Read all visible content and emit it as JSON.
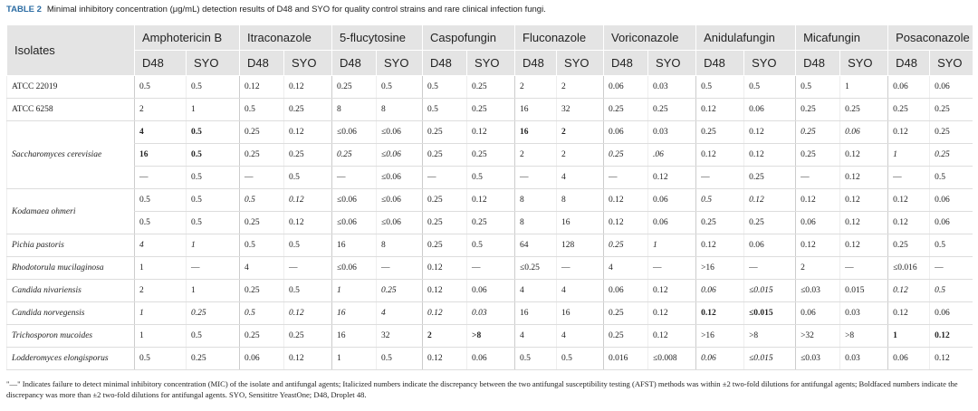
{
  "caption": {
    "label": "TABLE 2",
    "title": "Minimal inhibitory concentration (μg/mL) detection results of D48 and SYO for quality control strains and rare clinical infection fungi."
  },
  "table": {
    "corner": "Isolates",
    "columns": [
      "Amphotericin B",
      "Itraconazole",
      "5-flucytosine",
      "Caspofungin",
      "Fluconazole",
      "Voriconazole",
      "Anidulafungin",
      "Micafungin",
      "Posaconazole"
    ],
    "subcolumns": [
      "D48",
      "SYO"
    ],
    "rows": [
      {
        "isolate": "ATCC 22019",
        "subrows": [
          {
            "cells": [
              "0.5",
              "0.5",
              "0.12",
              "0.12",
              "0.25",
              "0.5",
              "0.5",
              "0.25",
              "2",
              "2",
              "0.06",
              "0.03",
              "0.5",
              "0.5",
              "0.5",
              "1",
              "0.06",
              "0.06"
            ]
          }
        ]
      },
      {
        "isolate": "ATCC 6258",
        "subrows": [
          {
            "cells": [
              "2",
              "1",
              "0.5",
              "0.25",
              "8",
              "8",
              "0.5",
              "0.25",
              "16",
              "32",
              "0.25",
              "0.25",
              "0.12",
              "0.06",
              "0.25",
              "0.25",
              "0.25",
              "0.25"
            ]
          }
        ]
      },
      {
        "isolate": "Saccharomyces cerevisiae",
        "isolate_italic": true,
        "subrows": [
          {
            "cells": [
              "4",
              "0.5",
              "0.25",
              "0.12",
              "≤0.06",
              "≤0.06",
              "0.25",
              "0.12",
              "16",
              "2",
              "0.06",
              "0.03",
              "0.25",
              "0.12",
              "0.25",
              "0.06",
              "0.12",
              "0.25"
            ],
            "bold": [
              0,
              1,
              8,
              9
            ],
            "italic": [
              14,
              15
            ]
          },
          {
            "cells": [
              "16",
              "0.5",
              "0.25",
              "0.25",
              "0.25",
              "≤0.06",
              "0.25",
              "0.25",
              "2",
              "2",
              "0.25",
              ".06",
              "0.12",
              "0.12",
              "0.25",
              "0.12",
              "1",
              "0.25"
            ],
            "bold": [
              0,
              1
            ],
            "italic": [
              4,
              5,
              10,
              11,
              16,
              17
            ]
          },
          {
            "cells": [
              "—",
              "0.5",
              "—",
              "0.5",
              "—",
              "≤0.06",
              "—",
              "0.5",
              "—",
              "4",
              "—",
              "0.12",
              "—",
              "0.25",
              "—",
              "0.12",
              "—",
              "0.5"
            ]
          }
        ]
      },
      {
        "isolate": "Kodamaea ohmeri",
        "isolate_italic": true,
        "subrows": [
          {
            "cells": [
              "0.5",
              "0.5",
              "0.5",
              "0.12",
              "≤0.06",
              "≤0.06",
              "0.25",
              "0.12",
              "8",
              "8",
              "0.12",
              "0.06",
              "0.5",
              "0.12",
              "0.12",
              "0.12",
              "0.12",
              "0.06"
            ],
            "italic": [
              2,
              3,
              12,
              13
            ]
          },
          {
            "cells": [
              "0.5",
              "0.5",
              "0.25",
              "0.12",
              "≤0.06",
              "≤0.06",
              "0.25",
              "0.25",
              "8",
              "16",
              "0.12",
              "0.06",
              "0.25",
              "0.25",
              "0.06",
              "0.12",
              "0.12",
              "0.06"
            ]
          }
        ]
      },
      {
        "isolate": "Pichia pastoris",
        "isolate_italic": true,
        "subrows": [
          {
            "cells": [
              "4",
              "1",
              "0.5",
              "0.5",
              "16",
              "8",
              "0.25",
              "0.5",
              "64",
              "128",
              "0.25",
              "1",
              "0.12",
              "0.06",
              "0.12",
              "0.12",
              "0.25",
              "0.5"
            ],
            "italic": [
              0,
              1,
              10,
              11
            ]
          }
        ]
      },
      {
        "isolate": "Rhodotorula mucilaginosa",
        "isolate_italic": true,
        "subrows": [
          {
            "cells": [
              "1",
              "—",
              "4",
              "—",
              "≤0.06",
              "—",
              "0.12",
              "—",
              "≤0.25",
              "—",
              "4",
              "—",
              ">16",
              "—",
              "2",
              "—",
              "≤0.016",
              "—"
            ]
          }
        ]
      },
      {
        "isolate": "Candida nivariensis",
        "isolate_italic": true,
        "subrows": [
          {
            "cells": [
              "2",
              "1",
              "0.25",
              "0.5",
              "1",
              "0.25",
              "0.12",
              "0.06",
              "4",
              "4",
              "0.06",
              "0.12",
              "0.06",
              "≤0.015",
              "≤0.03",
              "0.015",
              "0.12",
              "0.5"
            ],
            "italic": [
              4,
              5,
              12,
              13,
              16,
              17
            ]
          }
        ]
      },
      {
        "isolate": "Candida norvegensis",
        "isolate_italic": true,
        "subrows": [
          {
            "cells": [
              "1",
              "0.25",
              "0.5",
              "0.12",
              "16",
              "4",
              "0.12",
              "0.03",
              "16",
              "16",
              "0.25",
              "0.12",
              "0.12",
              "≤0.015",
              "0.06",
              "0.03",
              "0.12",
              "0.06"
            ],
            "italic": [
              0,
              1,
              2,
              3,
              4,
              5,
              6,
              7
            ],
            "bold": [
              12,
              13
            ]
          }
        ]
      },
      {
        "isolate": "Trichosporon mucoides",
        "isolate_italic": true,
        "subrows": [
          {
            "cells": [
              "1",
              "0.5",
              "0.25",
              "0.25",
              "16",
              "32",
              "2",
              ">8",
              "4",
              "4",
              "0.25",
              "0.12",
              ">16",
              ">8",
              ">32",
              ">8",
              "1",
              "0.12"
            ],
            "bold": [
              6,
              7,
              16,
              17
            ]
          }
        ]
      },
      {
        "isolate": "Lodderomyces elongisporus",
        "isolate_italic": true,
        "subrows": [
          {
            "cells": [
              "0.5",
              "0.25",
              "0.06",
              "0.12",
              "1",
              "0.5",
              "0.12",
              "0.06",
              "0.5",
              "0.5",
              "0.016",
              "≤0.008",
              "0.06",
              "≤0.015",
              "≤0.03",
              "0.03",
              "0.06",
              "0.12"
            ],
            "italic": [
              12,
              13
            ]
          }
        ]
      }
    ]
  },
  "footnote": "\"—\" Indicates failure to detect minimal inhibitory concentration (MIC) of the isolate and antifungal agents; Italicized numbers indicate the discrepancy between the two antifungal susceptibility testing (AFST) methods was within ±2 two-fold dilutions for antifungal agents; Boldfaced numbers indicate the discrepancy was more than ±2 two-fold dilutions for antifungal agents. SYO, Sensititre YeastOne; D48, Droplet 48."
}
